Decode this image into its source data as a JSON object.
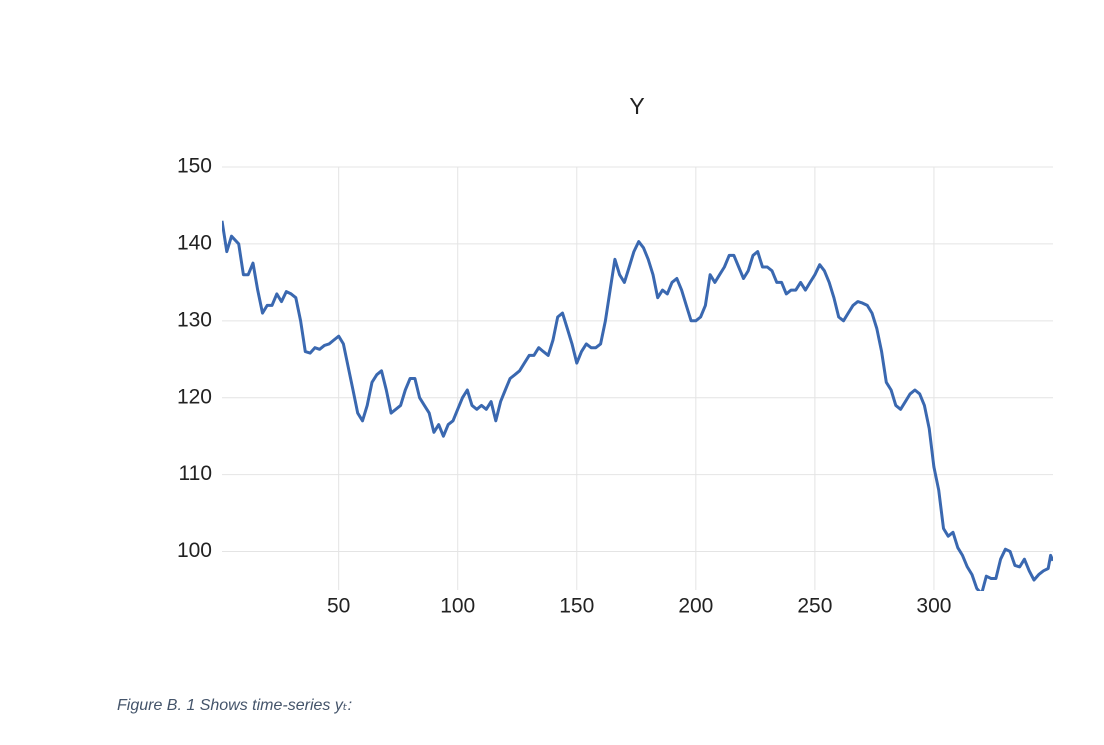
{
  "chart_data": {
    "type": "line",
    "title": "Y",
    "caption": "Figure B. 1 Shows time-series yₜ:",
    "color": "#3a68b0",
    "grid": true,
    "xlim": [
      1,
      350
    ],
    "xticks": [
      50,
      100,
      150,
      200,
      250,
      300
    ],
    "ylim": [
      95,
      150
    ],
    "yticks": [
      100,
      110,
      120,
      130,
      140,
      150
    ],
    "x": [
      1,
      3,
      5,
      8,
      10,
      12,
      14,
      16,
      18,
      20,
      22,
      24,
      26,
      28,
      30,
      32,
      34,
      36,
      38,
      40,
      42,
      44,
      46,
      48,
      50,
      52,
      54,
      56,
      58,
      60,
      62,
      64,
      66,
      68,
      70,
      72,
      74,
      76,
      78,
      80,
      82,
      84,
      86,
      88,
      90,
      92,
      94,
      96,
      98,
      100,
      102,
      104,
      106,
      108,
      110,
      112,
      114,
      116,
      118,
      120,
      122,
      124,
      126,
      128,
      130,
      132,
      134,
      136,
      138,
      140,
      142,
      144,
      146,
      148,
      150,
      152,
      154,
      156,
      158,
      160,
      162,
      164,
      166,
      168,
      170,
      172,
      174,
      176,
      178,
      180,
      182,
      184,
      186,
      188,
      190,
      192,
      194,
      196,
      198,
      200,
      202,
      204,
      206,
      208,
      210,
      212,
      214,
      216,
      218,
      220,
      222,
      224,
      226,
      228,
      230,
      232,
      234,
      236,
      238,
      240,
      242,
      244,
      246,
      248,
      250,
      252,
      254,
      256,
      258,
      260,
      262,
      264,
      266,
      268,
      270,
      272,
      274,
      276,
      278,
      280,
      282,
      284,
      286,
      288,
      290,
      292,
      294,
      296,
      298,
      300,
      302,
      304,
      306,
      308,
      310,
      312,
      314,
      316,
      318,
      320,
      322,
      324,
      326,
      328,
      330,
      332,
      334,
      336,
      338,
      340,
      342,
      344,
      346,
      348,
      349,
      350
    ],
    "values": [
      143,
      139,
      141,
      140,
      136,
      136,
      137.5,
      134,
      131,
      132,
      132,
      133.5,
      132.5,
      133.8,
      133.5,
      133,
      130,
      126,
      125.8,
      126.5,
      126.3,
      126.8,
      127,
      127.5,
      128,
      127,
      124,
      121,
      118,
      117,
      119,
      122,
      123,
      123.5,
      121,
      118,
      118.5,
      119,
      121,
      122.5,
      122.5,
      120,
      119,
      118,
      115.5,
      116.5,
      115,
      116.5,
      117,
      118.5,
      120,
      121,
      119,
      118.5,
      119,
      118.5,
      119.5,
      117,
      119.5,
      121,
      122.5,
      123,
      123.5,
      124.5,
      125.5,
      125.5,
      126.5,
      126,
      125.5,
      127.5,
      130.5,
      131,
      129,
      127,
      124.5,
      126,
      127,
      126.5,
      126.5,
      127,
      130,
      134,
      138,
      136,
      135,
      137,
      139,
      140.3,
      139.5,
      138,
      136,
      133,
      134,
      133.5,
      135,
      135.5,
      134,
      132,
      130,
      130,
      130.5,
      132,
      136,
      135,
      136,
      137,
      138.5,
      138.5,
      137,
      135.5,
      136.5,
      138.5,
      139,
      137,
      137,
      136.5,
      135,
      135,
      133.5,
      134,
      134,
      135,
      134,
      135,
      136,
      137.3,
      136.5,
      135,
      133,
      130.5,
      130,
      131,
      132,
      132.5,
      132.3,
      132,
      131,
      129,
      126,
      122,
      121,
      119,
      118.5,
      119.5,
      120.5,
      121,
      120.5,
      119,
      116,
      111,
      108,
      103,
      102,
      102.5,
      100.5,
      99.5,
      98,
      97,
      95.2,
      94.5,
      96.8,
      96.5,
      96.5,
      99,
      100.3,
      100,
      98.2,
      98,
      99,
      97.5,
      96.3,
      97,
      97.5,
      97.8,
      99.5,
      98.8
    ]
  }
}
